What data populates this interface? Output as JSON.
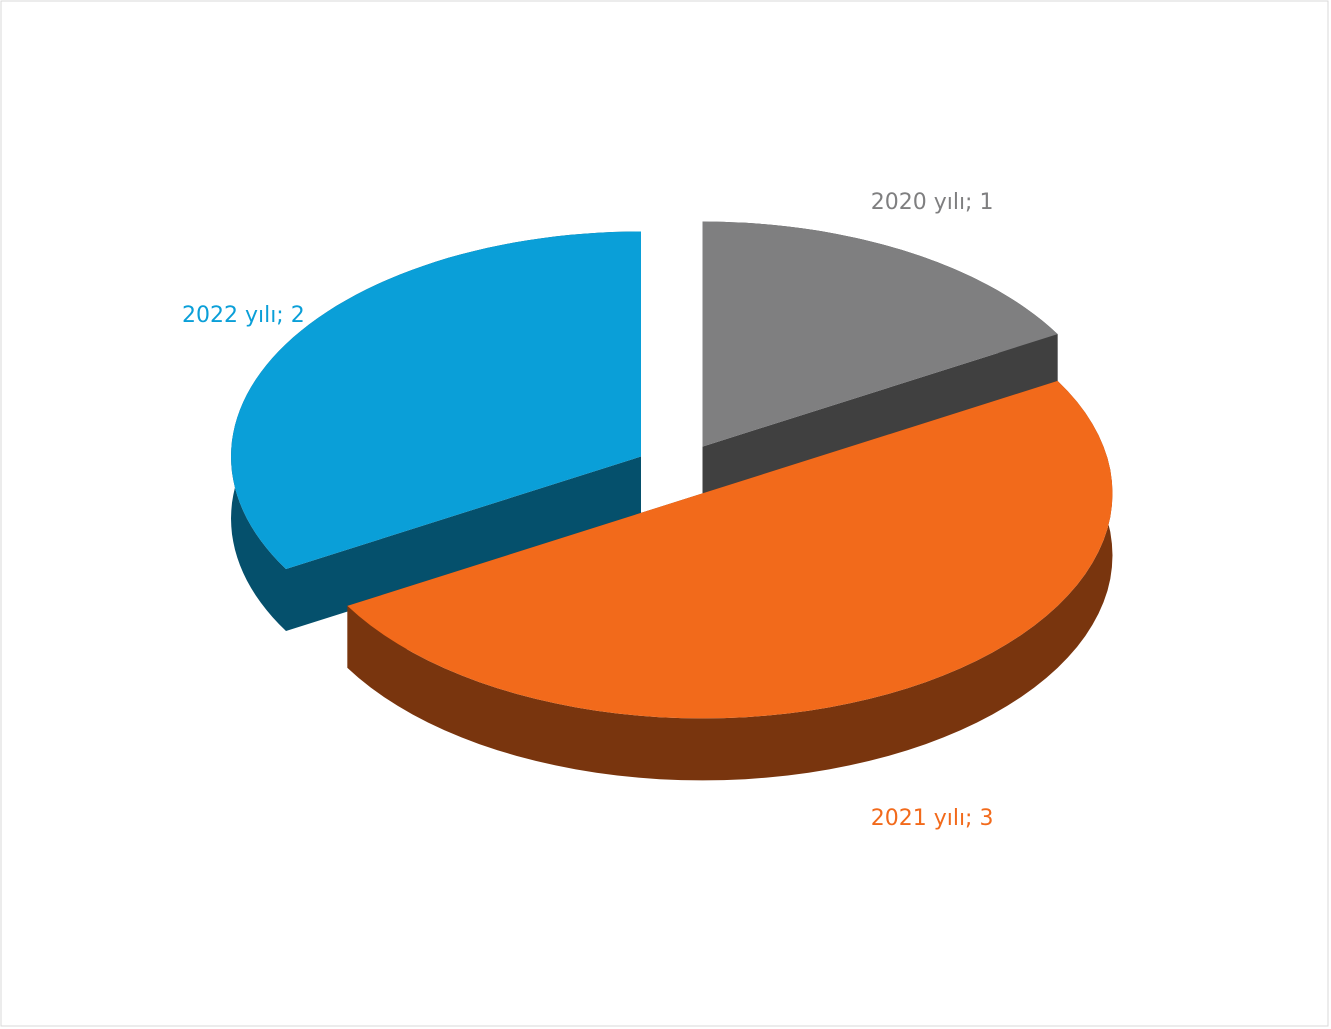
{
  "chart_data": {
    "type": "pie3d",
    "values": [
      1,
      3,
      2
    ],
    "value_labels": [
      "2020 yılı; 1",
      "2021 yılı; 3",
      "2022 yılı; 2"
    ],
    "colors": [
      "#7f7f80",
      "#f26a1b",
      "#0a9fd8"
    ]
  }
}
